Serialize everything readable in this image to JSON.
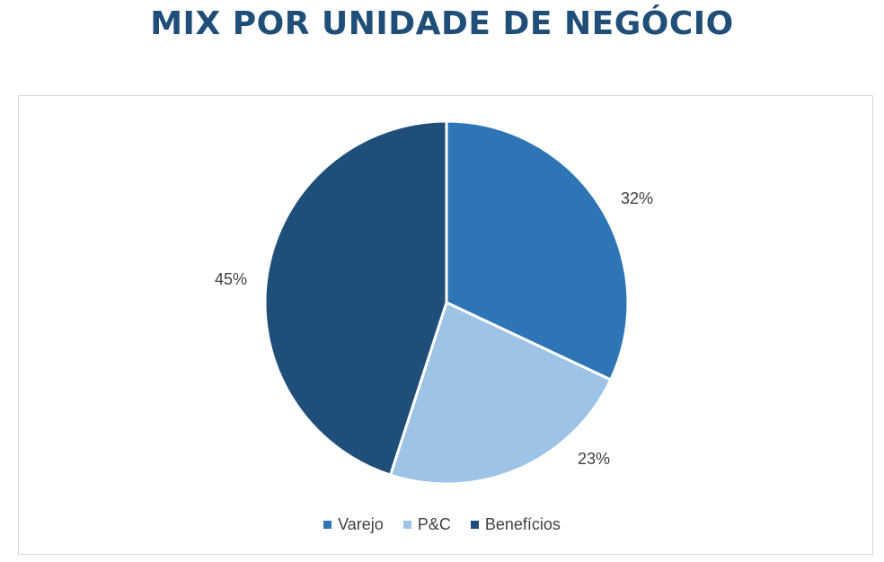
{
  "chart_data": {
    "type": "pie",
    "title": "MIX POR UNIDADE DE NEGÓCIO",
    "categories": [
      "Varejo",
      "P&C",
      "Benefícios"
    ],
    "values": [
      32,
      23,
      45
    ],
    "data_labels": [
      "32%",
      "23%",
      "45%"
    ],
    "colors": [
      "#2e75b6",
      "#9dc3e6",
      "#1f4e79"
    ],
    "legend_position": "bottom"
  }
}
